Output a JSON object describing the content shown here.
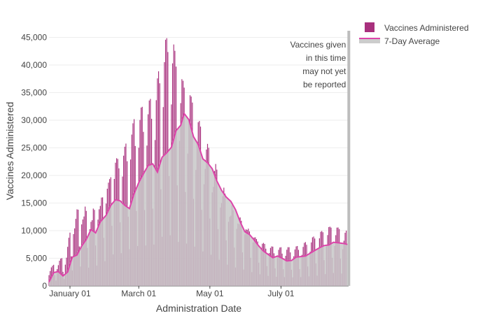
{
  "chart_data": {
    "type": "bar",
    "xlabel": "Administration Date",
    "ylabel": "Vaccines Administered",
    "x_range": [
      "2020-12-14",
      "2021-08-28"
    ],
    "ylim": [
      0,
      46200
    ],
    "y_ticks": [
      0,
      5000,
      10000,
      15000,
      20000,
      25000,
      30000,
      35000,
      40000,
      45000
    ],
    "y_tick_labels": [
      "0",
      "5,000",
      "10,000",
      "15,000",
      "20,000",
      "25,000",
      "30,000",
      "35,000",
      "40,000",
      "45,000"
    ],
    "x_ticks": [
      "2021-01-01",
      "2021-03-01",
      "2021-05-01",
      "2021-07-01"
    ],
    "x_tick_labels": [
      "January 01",
      "March 01",
      "May 01",
      "July 01"
    ],
    "grid": "horizontal",
    "legend_position": "top-right",
    "annotation": {
      "lines": [
        "Vaccines given",
        "in this time",
        "may not yet",
        "be reported"
      ],
      "shaded_from": "2021-08-27",
      "shaded_to": "2021-08-28"
    },
    "weekly_peaks": [
      [
        "2020-12-14",
        3000
      ],
      [
        "2020-12-21",
        4500
      ],
      [
        "2020-12-28",
        5500
      ],
      [
        "2021-01-04",
        13000
      ],
      [
        "2021-01-11",
        15000
      ],
      [
        "2021-01-18",
        13500
      ],
      [
        "2021-01-25",
        15500
      ],
      [
        "2021-02-01",
        19000
      ],
      [
        "2021-02-08",
        24500
      ],
      [
        "2021-02-15",
        25000
      ],
      [
        "2021-02-22",
        29000
      ],
      [
        "2021-03-01",
        32000
      ],
      [
        "2021-03-08",
        33000
      ],
      [
        "2021-03-15",
        35000
      ],
      [
        "2021-03-22",
        44000
      ],
      [
        "2021-03-29",
        46000
      ],
      [
        "2021-04-05",
        38000
      ],
      [
        "2021-04-12",
        36000
      ],
      [
        "2021-04-19",
        32000
      ],
      [
        "2021-04-26",
        27000
      ],
      [
        "2021-05-03",
        24000
      ],
      [
        "2021-05-10",
        19500
      ],
      [
        "2021-05-17",
        15500
      ],
      [
        "2021-05-24",
        13500
      ],
      [
        "2021-05-31",
        12000
      ],
      [
        "2021-06-07",
        10000
      ],
      [
        "2021-06-14",
        8500
      ],
      [
        "2021-06-21",
        7500
      ],
      [
        "2021-06-28",
        7000
      ],
      [
        "2021-07-05",
        7000
      ],
      [
        "2021-07-12",
        7000
      ],
      [
        "2021-07-19",
        7500
      ],
      [
        "2021-07-26",
        8500
      ],
      [
        "2021-08-02",
        9500
      ],
      [
        "2021-08-09",
        10500
      ],
      [
        "2021-08-16",
        11000
      ],
      [
        "2021-08-23",
        10000
      ]
    ],
    "weekly_trough_fraction": 0.15,
    "series": [
      {
        "name": "Vaccines Administered",
        "kind": "bar",
        "color": "#a8307d"
      },
      {
        "name": "7-Day Average",
        "kind": "line",
        "color": "#dd44aa",
        "points": [
          [
            "2020-12-14",
            700
          ],
          [
            "2020-12-18",
            2400
          ],
          [
            "2020-12-22",
            2600
          ],
          [
            "2020-12-26",
            1800
          ],
          [
            "2020-12-30",
            2500
          ],
          [
            "2021-01-03",
            5200
          ],
          [
            "2021-01-07",
            5600
          ],
          [
            "2021-01-11",
            7200
          ],
          [
            "2021-01-15",
            8400
          ],
          [
            "2021-01-19",
            10200
          ],
          [
            "2021-01-23",
            9600
          ],
          [
            "2021-01-27",
            11600
          ],
          [
            "2021-02-01",
            12800
          ],
          [
            "2021-02-05",
            14600
          ],
          [
            "2021-02-09",
            15600
          ],
          [
            "2021-02-13",
            15400
          ],
          [
            "2021-02-17",
            14600
          ],
          [
            "2021-02-21",
            14000
          ],
          [
            "2021-02-25",
            16700
          ],
          [
            "2021-03-01",
            18700
          ],
          [
            "2021-03-05",
            20300
          ],
          [
            "2021-03-09",
            21800
          ],
          [
            "2021-03-13",
            22100
          ],
          [
            "2021-03-17",
            20600
          ],
          [
            "2021-03-21",
            23300
          ],
          [
            "2021-03-25",
            24100
          ],
          [
            "2021-03-29",
            25100
          ],
          [
            "2021-04-02",
            28100
          ],
          [
            "2021-04-06",
            29100
          ],
          [
            "2021-04-09",
            31200
          ],
          [
            "2021-04-13",
            30100
          ],
          [
            "2021-04-17",
            27000
          ],
          [
            "2021-04-21",
            25600
          ],
          [
            "2021-04-25",
            23000
          ],
          [
            "2021-04-29",
            22300
          ],
          [
            "2021-05-03",
            21200
          ],
          [
            "2021-05-07",
            19000
          ],
          [
            "2021-05-11",
            17300
          ],
          [
            "2021-05-15",
            16100
          ],
          [
            "2021-05-19",
            15300
          ],
          [
            "2021-05-23",
            13800
          ],
          [
            "2021-05-27",
            11600
          ],
          [
            "2021-05-31",
            9800
          ],
          [
            "2021-06-04",
            9300
          ],
          [
            "2021-06-08",
            8300
          ],
          [
            "2021-06-12",
            7200
          ],
          [
            "2021-06-16",
            6300
          ],
          [
            "2021-06-20",
            5700
          ],
          [
            "2021-06-24",
            5100
          ],
          [
            "2021-06-28",
            5400
          ],
          [
            "2021-07-02",
            5000
          ],
          [
            "2021-07-06",
            4500
          ],
          [
            "2021-07-10",
            4600
          ],
          [
            "2021-07-14",
            5200
          ],
          [
            "2021-07-18",
            5300
          ],
          [
            "2021-07-22",
            5400
          ],
          [
            "2021-07-26",
            5900
          ],
          [
            "2021-07-30",
            6400
          ],
          [
            "2021-08-03",
            6900
          ],
          [
            "2021-08-07",
            7300
          ],
          [
            "2021-08-11",
            7400
          ],
          [
            "2021-08-15",
            7900
          ],
          [
            "2021-08-19",
            7800
          ],
          [
            "2021-08-23",
            7700
          ],
          [
            "2021-08-27",
            7500
          ]
        ]
      }
    ]
  }
}
